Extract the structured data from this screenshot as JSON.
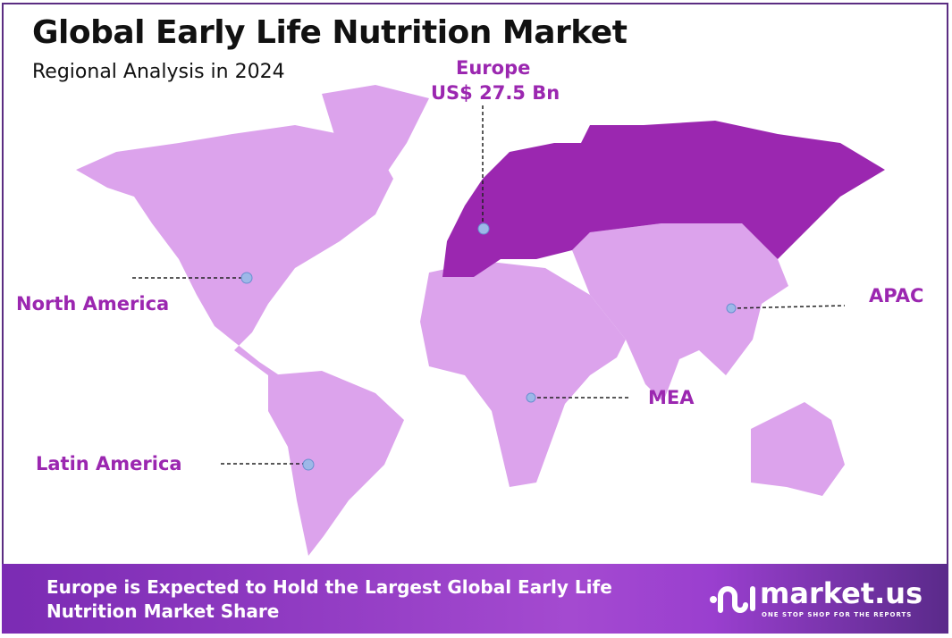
{
  "header": {
    "title": "Global Early Life Nutrition Market",
    "subtitle": "Regional Analysis in 2024"
  },
  "regions": [
    {
      "name": "Europe",
      "value": "US$ 27.5 Bn",
      "highlighted": true
    },
    {
      "name": "North America"
    },
    {
      "name": "APAC"
    },
    {
      "name": "MEA"
    },
    {
      "name": "Latin America"
    }
  ],
  "colors": {
    "highlight": "#9b27b0",
    "base": "#dca3ec",
    "marker": "#9db8e8",
    "label": "#9b27b0",
    "border": "#5b2d82"
  },
  "footer": {
    "text": "Europe is Expected to Hold the Largest Global Early Life Nutrition Market Share"
  },
  "logo": {
    "name": "market.us",
    "tagline": "ONE STOP SHOP FOR THE REPORTS"
  }
}
